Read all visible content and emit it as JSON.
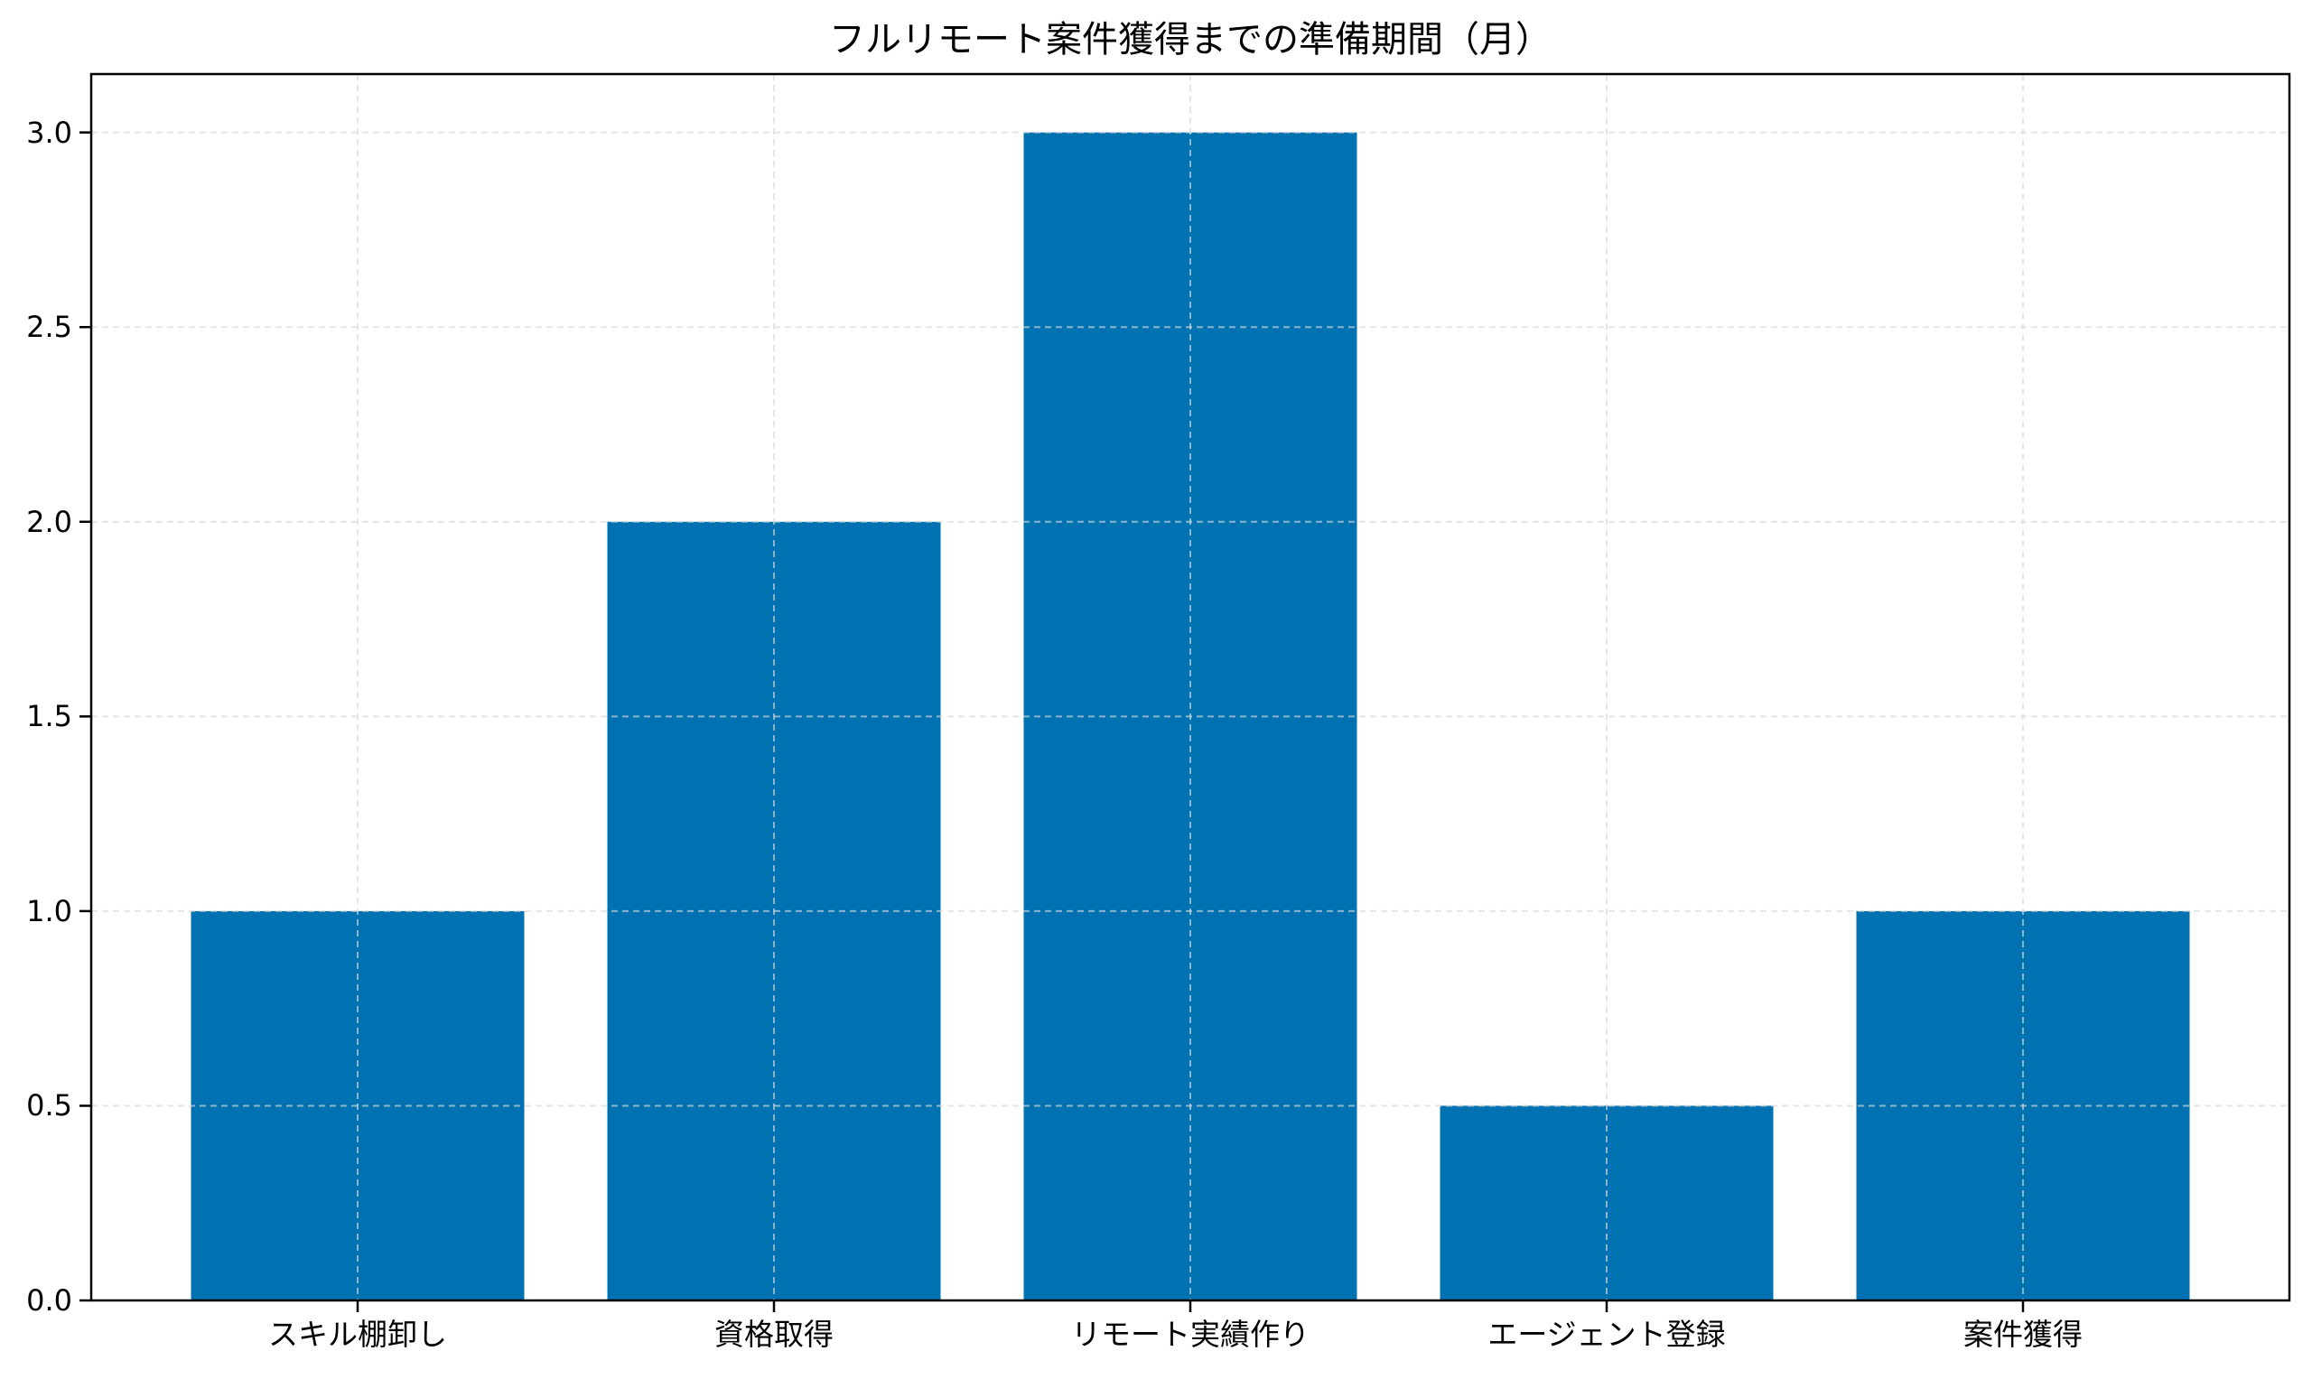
{
  "chart_data": {
    "type": "bar",
    "title": "フルリモート案件獲得までの準備期間（月）",
    "xlabel": "",
    "ylabel": "",
    "categories": [
      "スキル棚卸し",
      "資格取得",
      "リモート実績作り",
      "エージェント登録",
      "案件獲得"
    ],
    "values": [
      1.0,
      2.0,
      3.0,
      0.5,
      1.0
    ],
    "ylim": [
      0,
      3.15
    ],
    "yticks": [
      "0.0",
      "0.5",
      "1.0",
      "1.5",
      "2.0",
      "2.5",
      "3.0"
    ],
    "ytick_values": [
      0,
      0.5,
      1.0,
      1.5,
      2.0,
      2.5,
      3.0
    ],
    "grid": true,
    "grid_style": "dashed",
    "legend": null,
    "colors": {
      "bar": "#0072B2",
      "grid": "#d9d9d9",
      "axis": "#000000"
    }
  }
}
